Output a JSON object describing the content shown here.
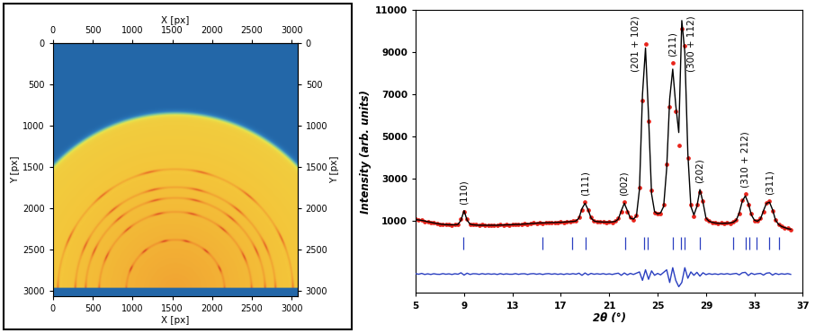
{
  "chart_data": [
    {
      "type": "image",
      "xlabel": "X [px]",
      "ylabel": "Y [px]",
      "xlim": [
        0,
        3072
      ],
      "ylim": [
        3072,
        0
      ],
      "xticks": [
        0,
        500,
        1000,
        1500,
        2000,
        2500,
        3000
      ],
      "yticks": [
        0,
        500,
        1000,
        1500,
        2000,
        2500,
        3000
      ],
      "beam_center": [
        1536,
        3010
      ],
      "illuminated_radius": 2160,
      "rings": [
        620,
        960,
        1130,
        1260,
        1480
      ],
      "beam_stop_top": 2975
    },
    {
      "type": "line",
      "xlabel": "2θ (°)",
      "ylabel": "Intensity (arb. units)",
      "xlim": [
        5,
        37
      ],
      "ylim": [
        -2400,
        11000
      ],
      "xticks": [
        5,
        9,
        13,
        17,
        21,
        25,
        29,
        33,
        37
      ],
      "yticks": [
        1000,
        3000,
        5000,
        7000,
        9000,
        11000
      ],
      "x": [
        5,
        5.25,
        5.5,
        5.75,
        6,
        6.25,
        6.5,
        6.75,
        7,
        7.25,
        7.5,
        7.75,
        8,
        8.25,
        8.5,
        8.75,
        9,
        9.25,
        9.5,
        9.75,
        10,
        10.25,
        10.5,
        10.75,
        11,
        11.25,
        11.5,
        11.75,
        12,
        12.25,
        12.5,
        12.75,
        13,
        13.25,
        13.5,
        13.75,
        14,
        14.25,
        14.5,
        14.75,
        15,
        15.25,
        15.5,
        15.75,
        16,
        16.25,
        16.5,
        16.75,
        17,
        17.25,
        17.5,
        17.75,
        18,
        18.25,
        18.5,
        18.75,
        19,
        19.25,
        19.5,
        19.75,
        20,
        20.25,
        20.5,
        20.75,
        21,
        21.25,
        21.5,
        21.75,
        22,
        22.25,
        22.5,
        22.75,
        23,
        23.25,
        23.5,
        23.75,
        24,
        24.25,
        24.5,
        24.75,
        25,
        25.25,
        25.5,
        25.75,
        26,
        26.25,
        26.5,
        26.75,
        27,
        27.25,
        27.5,
        27.75,
        28,
        28.25,
        28.5,
        28.75,
        29,
        29.25,
        29.5,
        29.75,
        30,
        30.25,
        30.5,
        30.75,
        31,
        31.25,
        31.5,
        31.75,
        32,
        32.25,
        32.5,
        32.75,
        33,
        33.25,
        33.5,
        33.75,
        34,
        34.25,
        34.5,
        34.75,
        35,
        35.25,
        35.5,
        35.75,
        36
      ],
      "series": [
        {
          "type": "scatter",
          "color": "#e8231a",
          "marker": "circle",
          "values": [
            1100,
            1050,
            1070,
            990,
            990,
            930,
            935,
            880,
            855,
            870,
            830,
            840,
            810,
            845,
            840,
            1110,
            1450,
            1090,
            840,
            845,
            830,
            795,
            830,
            800,
            825,
            800,
            820,
            790,
            840,
            805,
            840,
            820,
            830,
            870,
            835,
            870,
            885,
            860,
            900,
            920,
            900,
            935,
            900,
            940,
            950,
            930,
            955,
            935,
            960,
            940,
            985,
            970,
            1010,
            1000,
            1190,
            1540,
            1900,
            1510,
            1180,
            1000,
            995,
            960,
            980,
            945,
            970,
            950,
            1005,
            1140,
            1440,
            1900,
            1460,
            1180,
            1080,
            1290,
            2600,
            6700,
            9400,
            5750,
            2450,
            1390,
            1380,
            1360,
            1780,
            3700,
            6400,
            8500,
            6200,
            4600,
            10100,
            9300,
            4000,
            1800,
            1240,
            1780,
            2400,
            1960,
            1120,
            1020,
            935,
            930,
            880,
            915,
            890,
            930,
            905,
            960,
            1080,
            1360,
            2010,
            2280,
            1780,
            1340,
            1030,
            1015,
            1130,
            1450,
            1890,
            1960,
            1500,
            1080,
            830,
            765,
            690,
            670,
            605
          ]
        },
        {
          "type": "line",
          "color": "#000000",
          "line_style": "solid",
          "values": [
            1080,
            1060,
            1040,
            1010,
            980,
            950,
            920,
            890,
            870,
            850,
            840,
            830,
            830,
            830,
            850,
            1050,
            1500,
            1050,
            860,
            830,
            820,
            810,
            810,
            810,
            810,
            810,
            810,
            810,
            820,
            820,
            830,
            830,
            840,
            850,
            850,
            860,
            870,
            880,
            890,
            900,
            910,
            920,
            920,
            930,
            930,
            940,
            940,
            950,
            950,
            960,
            970,
            980,
            990,
            1010,
            1150,
            1600,
            1850,
            1550,
            1150,
            1010,
            980,
            970,
            960,
            960,
            960,
            970,
            990,
            1100,
            1500,
            1850,
            1500,
            1150,
            1100,
            1250,
            2500,
            7000,
            9200,
            6000,
            2300,
            1450,
            1350,
            1400,
            1700,
            3500,
            6800,
            8200,
            6500,
            5200,
            10500,
            9000,
            4200,
            1700,
            1300,
            1700,
            2500,
            1900,
            1150,
            1000,
            950,
            920,
            900,
            900,
            900,
            910,
            920,
            950,
            1050,
            1400,
            1950,
            2200,
            1850,
            1300,
            1050,
            1000,
            1100,
            1500,
            1850,
            1900,
            1550,
            1050,
            850,
            750,
            700,
            650,
            620
          ]
        },
        {
          "type": "line",
          "color": "#2a3fc0",
          "line_style": "solid",
          "values": [
            -1480,
            -1510,
            -1470,
            -1520,
            -1490,
            -1520,
            -1485,
            -1510,
            -1515,
            -1480,
            -1510,
            -1490,
            -1520,
            -1485,
            -1510,
            -1440,
            -1550,
            -1460,
            -1520,
            -1485,
            -1490,
            -1515,
            -1480,
            -1510,
            -1485,
            -1510,
            -1490,
            -1520,
            -1480,
            -1515,
            -1490,
            -1510,
            -1510,
            -1480,
            -1515,
            -1490,
            -1485,
            -1520,
            -1490,
            -1480,
            -1510,
            -1485,
            -1520,
            -1490,
            -1480,
            -1510,
            -1485,
            -1515,
            -1490,
            -1520,
            -1485,
            -1510,
            -1480,
            -1510,
            -1460,
            -1560,
            -1450,
            -1540,
            -1470,
            -1510,
            -1485,
            -1510,
            -1480,
            -1515,
            -1490,
            -1520,
            -1485,
            -1460,
            -1560,
            -1450,
            -1540,
            -1470,
            -1520,
            -1460,
            -1400,
            -1800,
            -1300,
            -1750,
            -1350,
            -1560,
            -1470,
            -1540,
            -1420,
            -1300,
            -1900,
            -1200,
            -1800,
            -2100,
            -1900,
            -1200,
            -1700,
            -1400,
            -1560,
            -1420,
            -1600,
            -1440,
            -1530,
            -1480,
            -1515,
            -1490,
            -1520,
            -1485,
            -1510,
            -1480,
            -1515,
            -1490,
            -1470,
            -1540,
            -1440,
            -1420,
            -1570,
            -1460,
            -1520,
            -1485,
            -1470,
            -1550,
            -1460,
            -1440,
            -1550,
            -1470,
            -1520,
            -1485,
            -1510,
            -1480,
            -1515
          ]
        }
      ],
      "reflections": {
        "x": [
          8.95,
          15.45,
          17.95,
          19.05,
          22.3,
          23.85,
          24.2,
          26.25,
          26.95,
          27.2,
          28.5,
          31.25,
          32.25,
          32.55,
          33.15,
          34.25,
          35.05
        ],
        "band": [
          -350,
          250
        ],
        "color": "#2a3fc0"
      },
      "peak_labels": [
        {
          "label": "(110)",
          "x": 9.0
        },
        {
          "label": "(111)",
          "x": 19.0
        },
        {
          "label": "(002)",
          "x": 22.25
        },
        {
          "label": "(201 + 102)",
          "x": 24.0
        },
        {
          "label": "(211)",
          "x": 26.25
        },
        {
          "label": "(300 + 112)",
          "x": 27.0
        },
        {
          "label": "(202)",
          "x": 28.5
        },
        {
          "label": "(310 + 212)",
          "x": 32.25
        },
        {
          "label": "(311)",
          "x": 34.25
        }
      ]
    }
  ]
}
